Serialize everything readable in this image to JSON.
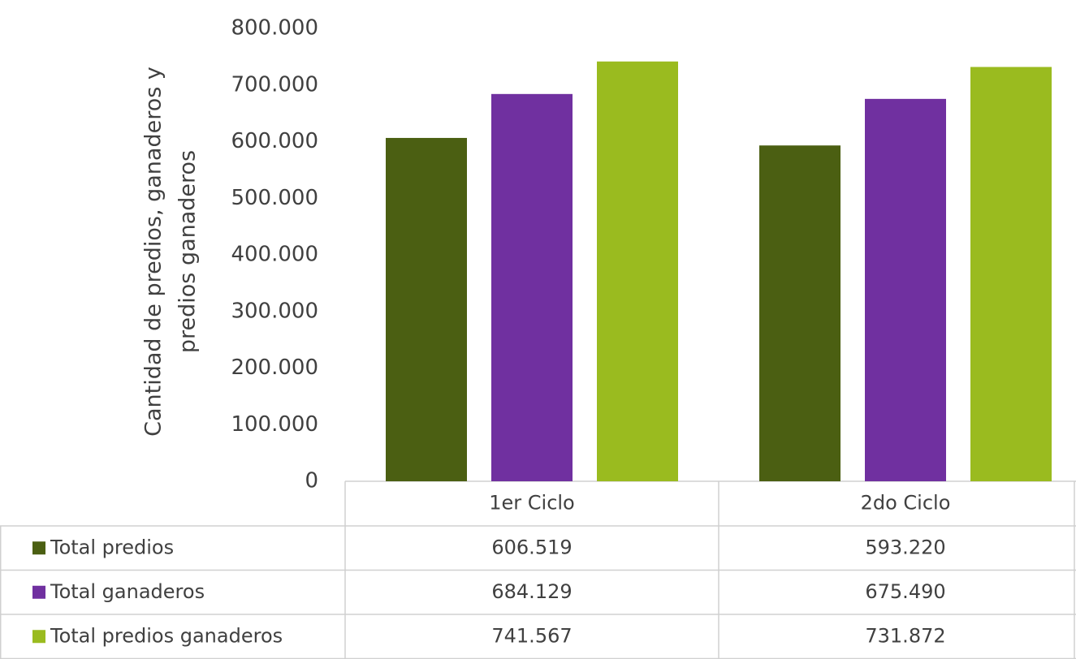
{
  "chart_data": {
    "type": "bar",
    "ylabel": [
      "Cantidad de predios, ganaderos y",
      "predios ganaderos"
    ],
    "categories": [
      "1er Ciclo",
      "2do Ciclo"
    ],
    "series": [
      {
        "name": "Total predios",
        "color": "#4b5f12",
        "values": [
          606519,
          593220
        ],
        "value_labels": [
          "606.519",
          "593.220"
        ]
      },
      {
        "name": "Total ganaderos",
        "color": "#7030a0",
        "values": [
          684129,
          675490
        ],
        "value_labels": [
          "684.129",
          "675.490"
        ]
      },
      {
        "name": "Total predios ganaderos",
        "color": "#9abb1f",
        "values": [
          741567,
          731872
        ],
        "value_labels": [
          "741.567",
          "731.872"
        ]
      }
    ],
    "ylim": [
      0,
      800000
    ],
    "yticks": [
      0,
      {
        "value": 100000,
        "label": "100.000"
      },
      {
        "value": 200000,
        "label": "200.000"
      },
      {
        "value": 300000,
        "label": "300.000"
      },
      {
        "value": 400000,
        "label": "400.000"
      },
      {
        "value": 500000,
        "label": "500.000"
      },
      {
        "value": 600000,
        "label": "600.000"
      },
      {
        "value": 700000,
        "label": "700.000"
      },
      {
        "value": 800000,
        "label": "800.000"
      }
    ],
    "grid": false
  }
}
